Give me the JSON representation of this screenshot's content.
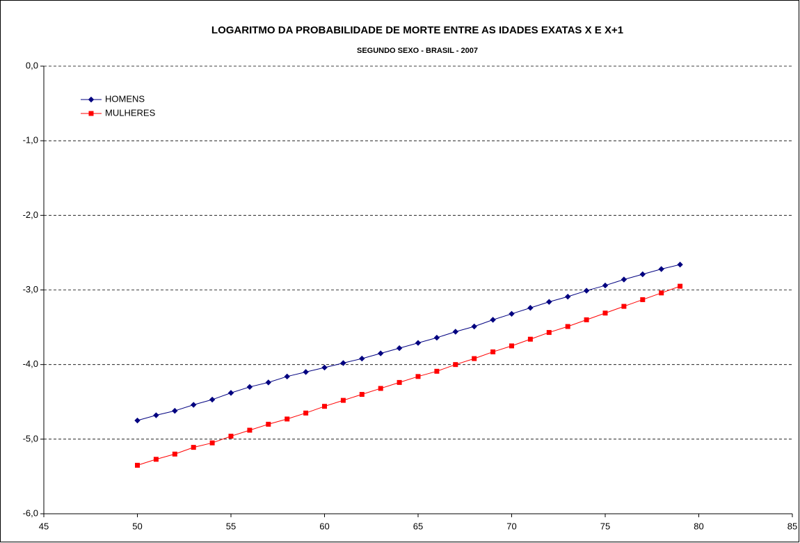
{
  "chart_data": {
    "type": "line",
    "title": "LOGARITMO DA PROBABILIDADE DE MORTE ENTRE AS IDADES EXATAS X E X+1",
    "subtitle": "SEGUNDO SEXO - BRASIL - 2007",
    "x": [
      50,
      51,
      52,
      53,
      54,
      55,
      56,
      57,
      58,
      59,
      60,
      61,
      62,
      63,
      64,
      65,
      66,
      67,
      68,
      69,
      70,
      71,
      72,
      73,
      74,
      75,
      76,
      77,
      78,
      79
    ],
    "series": [
      {
        "name": "HOMENS",
        "color": "#000080",
        "marker": "diamond",
        "values": [
          -4.75,
          -4.68,
          -4.62,
          -4.54,
          -4.47,
          -4.38,
          -4.3,
          -4.24,
          -4.16,
          -4.1,
          -4.04,
          -3.98,
          -3.92,
          -3.85,
          -3.78,
          -3.71,
          -3.64,
          -3.56,
          -3.49,
          -3.4,
          -3.32,
          -3.24,
          -3.16,
          -3.09,
          -3.01,
          -2.94,
          -2.86,
          -2.79,
          -2.72,
          -2.66
        ]
      },
      {
        "name": "MULHERES",
        "color": "#ff0000",
        "marker": "square",
        "values": [
          -5.35,
          -5.27,
          -5.2,
          -5.11,
          -5.05,
          -4.96,
          -4.88,
          -4.8,
          -4.73,
          -4.65,
          -4.56,
          -4.48,
          -4.4,
          -4.32,
          -4.24,
          -4.16,
          -4.09,
          -4.0,
          -3.92,
          -3.83,
          -3.75,
          -3.66,
          -3.57,
          -3.49,
          -3.4,
          -3.31,
          -3.22,
          -3.13,
          -3.04,
          -2.95
        ]
      }
    ],
    "xlim": [
      45,
      85
    ],
    "xticks": [
      45,
      50,
      55,
      60,
      65,
      70,
      75,
      80,
      85
    ],
    "ylim": [
      -6,
      0
    ],
    "yticks": [
      {
        "value": 0,
        "label": "0,0"
      },
      {
        "value": -1,
        "label": "-1,0"
      },
      {
        "value": -2,
        "label": "-2,0"
      },
      {
        "value": -3,
        "label": "-3,0"
      },
      {
        "value": -4,
        "label": "-4,0"
      },
      {
        "value": -5,
        "label": "-5,0"
      },
      {
        "value": -6,
        "label": "-6,0"
      }
    ],
    "grid": true,
    "legend": "upper-left"
  }
}
